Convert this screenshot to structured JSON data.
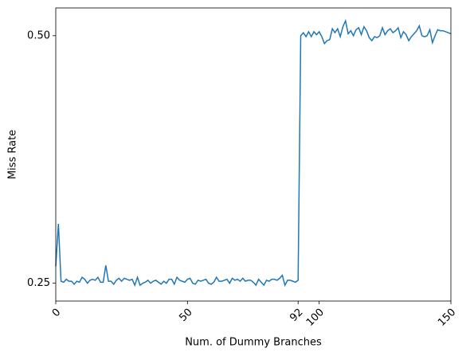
{
  "chart_data": {
    "type": "line",
    "xlabel": "Num. of Dummy Branches",
    "ylabel": "Miss Rate",
    "xlim": [
      0,
      150
    ],
    "ylim": [
      0.232,
      0.528
    ],
    "xticks": [
      0,
      50,
      92,
      100,
      150
    ],
    "yticks": [
      {
        "value": 0.25,
        "label": "0.25"
      },
      {
        "value": 0.5,
        "label": "0.50"
      }
    ],
    "x": [
      0,
      1,
      2,
      3,
      4,
      5,
      6,
      7,
      8,
      9,
      10,
      11,
      12,
      13,
      14,
      15,
      16,
      17,
      18,
      19,
      20,
      21,
      22,
      23,
      24,
      25,
      26,
      27,
      28,
      29,
      30,
      31,
      32,
      33,
      34,
      35,
      36,
      37,
      38,
      39,
      40,
      41,
      42,
      43,
      44,
      45,
      46,
      47,
      48,
      49,
      50,
      51,
      52,
      53,
      54,
      55,
      56,
      57,
      58,
      59,
      60,
      61,
      62,
      63,
      64,
      65,
      66,
      67,
      68,
      69,
      70,
      71,
      72,
      73,
      74,
      75,
      76,
      77,
      78,
      79,
      80,
      81,
      82,
      83,
      84,
      85,
      86,
      87,
      88,
      89,
      90,
      91,
      92,
      93,
      94,
      95,
      96,
      97,
      98,
      99,
      100,
      101,
      102,
      103,
      104,
      105,
      106,
      107,
      108,
      109,
      110,
      111,
      112,
      113,
      114,
      115,
      116,
      117,
      118,
      119,
      120,
      121,
      122,
      123,
      124,
      125,
      126,
      127,
      128,
      129,
      130,
      131,
      132,
      133,
      134,
      135,
      136,
      137,
      138,
      139,
      140,
      141,
      142,
      143,
      144,
      145,
      146,
      147,
      148,
      149,
      150
    ],
    "series": [
      {
        "color": "#1f77b4",
        "values": [
          0.267,
          0.31,
          0.252,
          0.251,
          0.254,
          0.252,
          0.252,
          0.249,
          0.252,
          0.251,
          0.256,
          0.254,
          0.25,
          0.253,
          0.254,
          0.253,
          0.256,
          0.251,
          0.251,
          0.268,
          0.252,
          0.252,
          0.249,
          0.253,
          0.255,
          0.252,
          0.255,
          0.254,
          0.253,
          0.254,
          0.248,
          0.256,
          0.248,
          0.25,
          0.251,
          0.253,
          0.25,
          0.252,
          0.253,
          0.251,
          0.249,
          0.252,
          0.25,
          0.254,
          0.254,
          0.249,
          0.256,
          0.253,
          0.252,
          0.251,
          0.254,
          0.255,
          0.25,
          0.249,
          0.253,
          0.252,
          0.253,
          0.254,
          0.25,
          0.249,
          0.251,
          0.256,
          0.252,
          0.252,
          0.253,
          0.254,
          0.25,
          0.255,
          0.253,
          0.254,
          0.252,
          0.255,
          0.252,
          0.253,
          0.253,
          0.251,
          0.248,
          0.254,
          0.251,
          0.248,
          0.253,
          0.252,
          0.254,
          0.254,
          0.253,
          0.255,
          0.258,
          0.248,
          0.253,
          0.253,
          0.252,
          0.251,
          0.253,
          0.5,
          0.503,
          0.499,
          0.504,
          0.499,
          0.504,
          0.501,
          0.504,
          0.499,
          0.492,
          0.495,
          0.496,
          0.507,
          0.503,
          0.507,
          0.499,
          0.509,
          0.515,
          0.502,
          0.505,
          0.5,
          0.506,
          0.508,
          0.501,
          0.509,
          0.505,
          0.498,
          0.495,
          0.499,
          0.498,
          0.5,
          0.508,
          0.501,
          0.505,
          0.507,
          0.503,
          0.505,
          0.508,
          0.498,
          0.504,
          0.501,
          0.495,
          0.499,
          0.502,
          0.505,
          0.51,
          0.5,
          0.499,
          0.5,
          0.506,
          0.493,
          0.5,
          0.506,
          0.505,
          0.505,
          0.504,
          0.503,
          0.502
        ]
      }
    ]
  }
}
